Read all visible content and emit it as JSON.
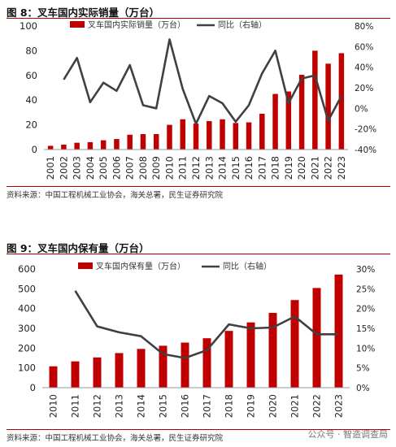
{
  "chart_data": [
    {
      "type": "bar",
      "figure_title": "图 8：叉车国内实际销量（万台）",
      "categories": [
        "2001",
        "2002",
        "2003",
        "2004",
        "2005",
        "2006",
        "2007",
        "2008",
        "2009",
        "2010",
        "2011",
        "2012",
        "2013",
        "2014",
        "2015",
        "2016",
        "2017",
        "2018",
        "2019",
        "2020",
        "2021",
        "2022",
        "2023"
      ],
      "series": [
        {
          "name": "叉车国内实际销量（万台）",
          "type": "bar",
          "axis": "left",
          "color": "#c00000",
          "values": [
            3,
            4,
            5.5,
            6,
            7.5,
            8.5,
            12,
            12.5,
            12.5,
            20,
            24.5,
            21,
            23,
            24.5,
            21.5,
            22,
            29,
            45,
            47,
            60.5,
            80,
            69.5,
            78
          ]
        },
        {
          "name": "同比（右轴）",
          "type": "line",
          "axis": "right",
          "color": "#404040",
          "values": [
            null,
            28,
            49,
            6,
            25,
            17,
            42,
            3,
            0,
            67,
            19,
            -15,
            12,
            5,
            -13,
            3,
            34,
            56,
            5,
            29,
            32,
            -12,
            12
          ]
        }
      ],
      "ylim_left": [
        0,
        100
      ],
      "yticks_left": [
        "0",
        "20",
        "40",
        "60",
        "80",
        "100"
      ],
      "ylim_right": [
        -40,
        80
      ],
      "yticks_right": [
        "-40%",
        "-20%",
        "0%",
        "20%",
        "40%",
        "60%",
        "80%"
      ],
      "legend_position": "top"
    },
    {
      "type": "bar",
      "figure_title": "图 9：叉车国内保有量（万台）",
      "categories": [
        "2010",
        "2011",
        "2012",
        "2013",
        "2014",
        "2015",
        "2016",
        "2017",
        "2018",
        "2019",
        "2020",
        "2021",
        "2022",
        "2023"
      ],
      "series": [
        {
          "name": "叉车国内保有量（万台）",
          "type": "bar",
          "axis": "left",
          "color": "#c00000",
          "values": [
            108,
            133,
            153,
            175,
            196,
            212,
            228,
            250,
            287,
            330,
            378,
            443,
            504,
            572
          ]
        },
        {
          "name": "同比（右轴）",
          "type": "line",
          "axis": "right",
          "color": "#404040",
          "values": [
            null,
            24.5,
            15.5,
            14,
            13,
            8.5,
            7.5,
            9.5,
            16,
            15,
            15.2,
            18,
            13.5,
            13.5
          ]
        }
      ],
      "ylim_left": [
        0,
        600
      ],
      "yticks_left": [
        "0",
        "100",
        "200",
        "300",
        "400",
        "500",
        "600"
      ],
      "ylim_right": [
        0,
        30
      ],
      "yticks_right": [
        "0%",
        "5%",
        "10%",
        "15%",
        "20%",
        "25%",
        "30%"
      ],
      "legend_position": "top"
    }
  ],
  "source_note": "资料来源：中国工程机械工业协会，海关总署，民生证券研究院",
  "watermark": "公众号 · 智造调查局"
}
